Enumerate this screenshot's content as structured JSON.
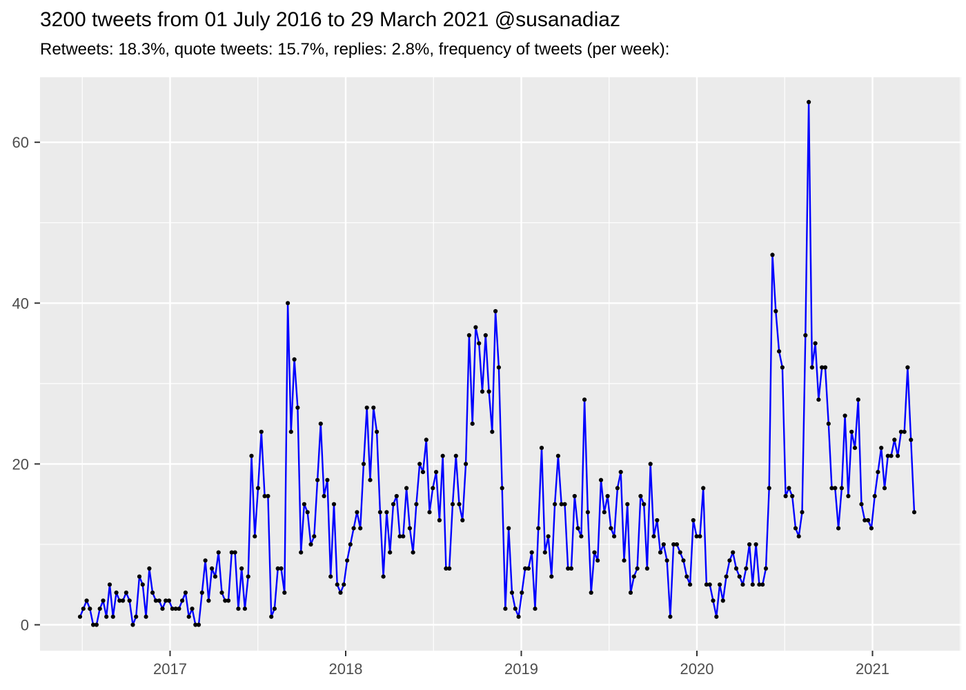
{
  "header": {
    "title": "3200 tweets from 01 July 2016 to 29 March 2021 @susanadiaz",
    "subtitle": "Retweets: 18.3%, quote tweets: 15.7%, replies: 2.8%, frequency of tweets (per week):"
  },
  "style": {
    "panel_background": "#EBEBEB",
    "grid_color": "#FFFFFF",
    "axis_text_color": "#4D4D4D",
    "tick_mark_color": "#333333",
    "line_color": "#0000FF",
    "point_color": "#000000",
    "page_background": "#FFFFFF",
    "title_color": "#000000"
  },
  "chart_data": {
    "type": "line",
    "title": "3200 tweets from 01 July 2016 to 29 March 2021 @susanadiaz",
    "subtitle": "Retweets: 18.3%, quote tweets: 15.7%, replies: 2.8%, frequency of tweets (per week):",
    "xlabel": "",
    "ylabel": "",
    "x_start": "2016-07-01",
    "x_end": "2021-03-29",
    "frequency": "weekly",
    "x_tick_labels": [
      "2017",
      "2018",
      "2019",
      "2020",
      "2021"
    ],
    "y_ticks_major": [
      0,
      20,
      40,
      60
    ],
    "y_ticks_minor": [
      10,
      30,
      50
    ],
    "ylim": [
      -3.5,
      68
    ],
    "grid": "on",
    "legend": "none",
    "series": [
      {
        "name": "tweets_per_week",
        "color": "#0000FF",
        "point_color": "#000000",
        "values": [
          1,
          2,
          3,
          2,
          0,
          0,
          2,
          3,
          1,
          5,
          1,
          4,
          3,
          3,
          4,
          3,
          0,
          1,
          6,
          5,
          1,
          7,
          4,
          3,
          3,
          2,
          3,
          3,
          2,
          2,
          2,
          3,
          4,
          1,
          2,
          0,
          0,
          4,
          8,
          3,
          7,
          6,
          9,
          4,
          3,
          3,
          9,
          9,
          2,
          7,
          2,
          6,
          21,
          11,
          17,
          24,
          16,
          16,
          1,
          2,
          7,
          7,
          4,
          40,
          24,
          33,
          27,
          9,
          15,
          14,
          10,
          11,
          18,
          25,
          16,
          18,
          6,
          15,
          5,
          4,
          5,
          8,
          10,
          12,
          14,
          12,
          20,
          27,
          18,
          27,
          24,
          14,
          6,
          14,
          9,
          15,
          16,
          11,
          11,
          17,
          12,
          9,
          15,
          20,
          19,
          23,
          14,
          17,
          19,
          13,
          21,
          7,
          7,
          15,
          21,
          15,
          13,
          20,
          36,
          25,
          37,
          35,
          29,
          36,
          29,
          24,
          39,
          32,
          17,
          2,
          12,
          4,
          2,
          1,
          4,
          7,
          7,
          9,
          2,
          12,
          22,
          9,
          11,
          6,
          15,
          21,
          15,
          15,
          7,
          7,
          16,
          12,
          11,
          28,
          14,
          4,
          9,
          8,
          18,
          14,
          16,
          12,
          11,
          17,
          19,
          8,
          15,
          4,
          6,
          7,
          16,
          15,
          7,
          20,
          11,
          13,
          9,
          10,
          8,
          1,
          10,
          10,
          9,
          8,
          6,
          5,
          13,
          11,
          11,
          17,
          5,
          5,
          3,
          1,
          5,
          3,
          6,
          8,
          9,
          7,
          6,
          5,
          7,
          10,
          5,
          10,
          5,
          5,
          7,
          17,
          46,
          39,
          34,
          32,
          16,
          17,
          16,
          12,
          11,
          14,
          36,
          65,
          32,
          35,
          28,
          32,
          32,
          25,
          17,
          17,
          12,
          17,
          26,
          16,
          24,
          22,
          28,
          15,
          13,
          13,
          12,
          16,
          19,
          22,
          17,
          21,
          21,
          23,
          21,
          24,
          24,
          32,
          23,
          14
        ]
      }
    ]
  }
}
